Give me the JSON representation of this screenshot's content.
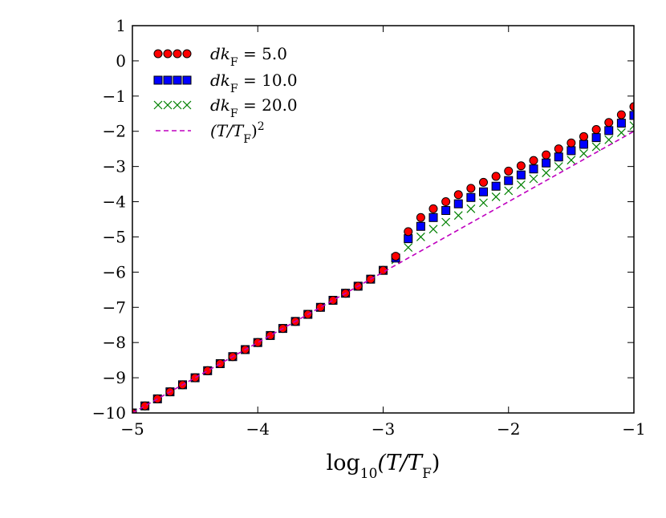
{
  "chart_data": {
    "type": "scatter",
    "xlabel": "log₁₀(T/T_F)",
    "xlim": [
      -5,
      -1
    ],
    "ylim": [
      -10,
      1
    ],
    "xticks": [
      "−5",
      "−4",
      "−3",
      "−2",
      "−1"
    ],
    "yticks": [
      "1",
      "0",
      "−1",
      "−2",
      "−3",
      "−4",
      "−5",
      "−6",
      "−7",
      "−8",
      "−9",
      "−10"
    ],
    "grid": false,
    "legend_position": "top-left",
    "series": [
      {
        "name": "dk_F = 5.0",
        "marker": "circle",
        "color": "#ff0000",
        "x": [
          -5.0,
          -4.9,
          -4.8,
          -4.7,
          -4.6,
          -4.5,
          -4.4,
          -4.3,
          -4.2,
          -4.1,
          -4.0,
          -3.9,
          -3.8,
          -3.7,
          -3.6,
          -3.5,
          -3.4,
          -3.3,
          -3.2,
          -3.1,
          -3.0,
          -2.9,
          -2.8,
          -2.7,
          -2.6,
          -2.5,
          -2.4,
          -2.3,
          -2.2,
          -2.1,
          -2.0,
          -1.9,
          -1.8,
          -1.7,
          -1.6,
          -1.5,
          -1.4,
          -1.3,
          -1.2,
          -1.1,
          -1.0
        ],
        "y": [
          -10.0,
          -9.8,
          -9.6,
          -9.4,
          -9.2,
          -9.0,
          -8.8,
          -8.6,
          -8.4,
          -8.2,
          -8.0,
          -7.8,
          -7.6,
          -7.4,
          -7.2,
          -7.0,
          -6.8,
          -6.6,
          -6.4,
          -6.2,
          -5.95,
          -5.55,
          -4.85,
          -4.45,
          -4.2,
          -4.0,
          -3.8,
          -3.62,
          -3.45,
          -3.28,
          -3.13,
          -2.98,
          -2.83,
          -2.67,
          -2.5,
          -2.33,
          -2.15,
          -1.95,
          -1.75,
          -1.53,
          -1.3
        ]
      },
      {
        "name": "dk_F = 10.0",
        "marker": "square",
        "color": "#0000ff",
        "x": [
          -5.0,
          -4.9,
          -4.8,
          -4.7,
          -4.6,
          -4.5,
          -4.4,
          -4.3,
          -4.2,
          -4.1,
          -4.0,
          -3.9,
          -3.8,
          -3.7,
          -3.6,
          -3.5,
          -3.4,
          -3.3,
          -3.2,
          -3.1,
          -3.0,
          -2.9,
          -2.8,
          -2.7,
          -2.6,
          -2.5,
          -2.4,
          -2.3,
          -2.2,
          -2.1,
          -2.0,
          -1.9,
          -1.8,
          -1.7,
          -1.6,
          -1.5,
          -1.4,
          -1.3,
          -1.2,
          -1.1,
          -1.0
        ],
        "y": [
          -10.0,
          -9.8,
          -9.6,
          -9.4,
          -9.2,
          -9.0,
          -8.8,
          -8.6,
          -8.4,
          -8.2,
          -8.0,
          -7.8,
          -7.6,
          -7.4,
          -7.2,
          -7.0,
          -6.8,
          -6.6,
          -6.4,
          -6.2,
          -5.95,
          -5.6,
          -5.05,
          -4.7,
          -4.45,
          -4.25,
          -4.06,
          -3.88,
          -3.72,
          -3.56,
          -3.4,
          -3.24,
          -3.07,
          -2.9,
          -2.73,
          -2.55,
          -2.37,
          -2.18,
          -1.98,
          -1.77,
          -1.55
        ]
      },
      {
        "name": "dk_F = 20.0",
        "marker": "x",
        "color": "#008000",
        "x": [
          -5.0,
          -4.9,
          -4.8,
          -4.7,
          -4.6,
          -4.5,
          -4.4,
          -4.3,
          -4.2,
          -4.1,
          -4.0,
          -3.9,
          -3.8,
          -3.7,
          -3.6,
          -3.5,
          -3.4,
          -3.3,
          -3.2,
          -3.1,
          -3.0,
          -2.9,
          -2.8,
          -2.7,
          -2.6,
          -2.5,
          -2.4,
          -2.3,
          -2.2,
          -2.1,
          -2.0,
          -1.9,
          -1.8,
          -1.7,
          -1.6,
          -1.5,
          -1.4,
          -1.3,
          -1.2,
          -1.1,
          -1.0
        ],
        "y": [
          -10.0,
          -9.8,
          -9.6,
          -9.4,
          -9.2,
          -9.0,
          -8.8,
          -8.6,
          -8.4,
          -8.2,
          -8.0,
          -7.8,
          -7.6,
          -7.4,
          -7.2,
          -7.0,
          -6.8,
          -6.6,
          -6.4,
          -6.2,
          -5.95,
          -5.65,
          -5.3,
          -5.0,
          -4.78,
          -4.58,
          -4.39,
          -4.2,
          -4.03,
          -3.86,
          -3.69,
          -3.52,
          -3.35,
          -3.18,
          -3.0,
          -2.82,
          -2.63,
          -2.44,
          -2.24,
          -2.04,
          -1.84
        ]
      },
      {
        "name": "(T/T_F)²",
        "marker": "dashed-line",
        "color": "#bf00bf",
        "x": [
          -5.0,
          -1.0
        ],
        "y": [
          -10.0,
          -2.0
        ]
      }
    ]
  },
  "legend": [
    {
      "main": "dk",
      "sub": "F",
      "rest": " = 5.0"
    },
    {
      "main": "dk",
      "sub": "F",
      "rest": " = 10.0"
    },
    {
      "main": "dk",
      "sub": "F",
      "rest": " = 20.0"
    },
    {
      "main": "(T/T",
      "sub": "F",
      "rest": ")",
      "sup": "2"
    }
  ],
  "axis_label": {
    "prefix": "log",
    "sub": "10",
    "rest": "(T/T",
    "sub2": "F",
    "end": ")"
  }
}
